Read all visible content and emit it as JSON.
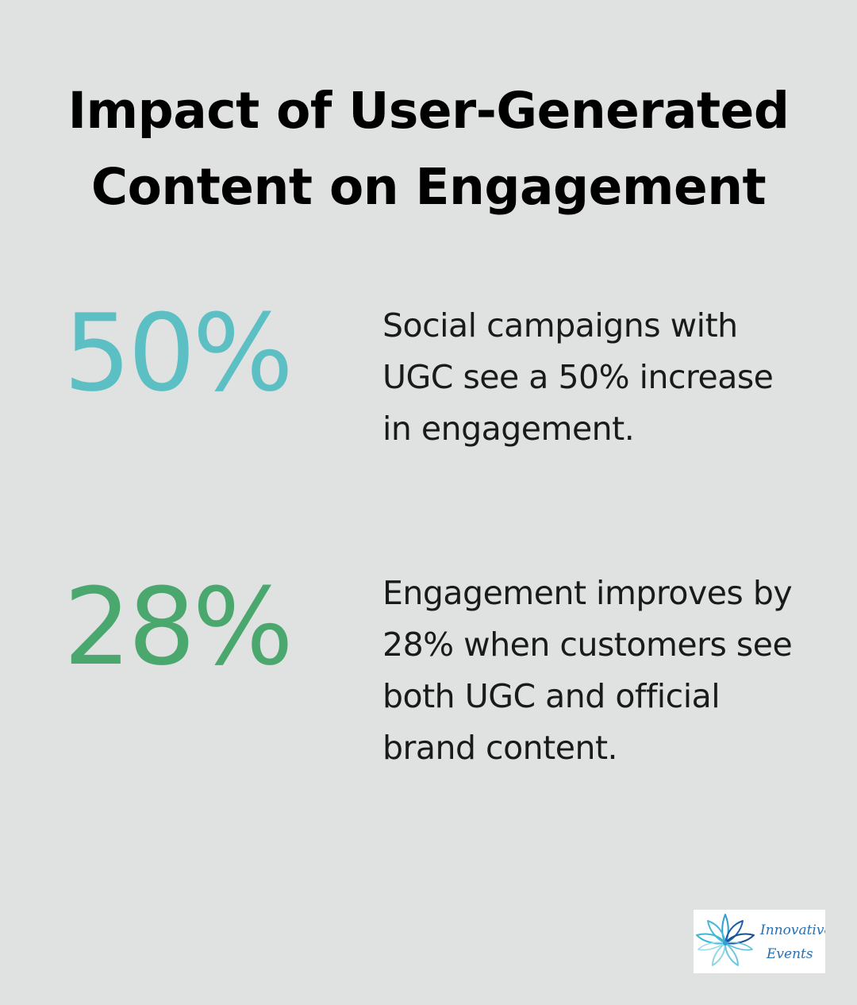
{
  "title": "Impact of User-Generated Content on Engagement",
  "stats": [
    {
      "value": "50%",
      "description": "Social campaigns with UGC see a 50% increase in engagement.",
      "color": "#5bbfc3"
    },
    {
      "value": "28%",
      "description": "Engagement improves by 28% when customers see both UGC and official brand content.",
      "color": "#4aa86e"
    }
  ],
  "logo": {
    "line1": "Innovative",
    "line2": "Events",
    "icon": "lotus-flower-icon"
  },
  "colors": {
    "background": "#e0e2e1",
    "title": "#000000",
    "body_text": "#1a1a1a"
  }
}
